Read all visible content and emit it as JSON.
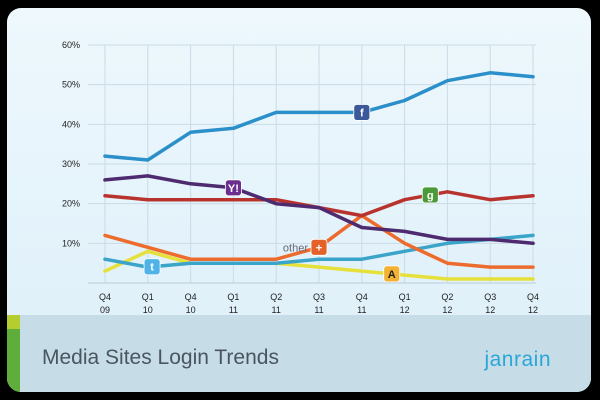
{
  "footer": {
    "title": "Media Sites Login Trends",
    "logo": "janrain"
  },
  "chart_data": {
    "type": "line",
    "title": "Media Sites Login Trends",
    "xlabel": "",
    "ylabel": "",
    "categories": [
      [
        "Q4",
        "09"
      ],
      [
        "Q1",
        "10"
      ],
      [
        "Q4",
        "10"
      ],
      [
        "Q1",
        "11"
      ],
      [
        "Q2",
        "11"
      ],
      [
        "Q3",
        "11"
      ],
      [
        "Q4",
        "11"
      ],
      [
        "Q1",
        "12"
      ],
      [
        "Q2",
        "12"
      ],
      [
        "Q3",
        "12"
      ],
      [
        "Q4",
        "12"
      ]
    ],
    "ylim": [
      0,
      60
    ],
    "yticks": [
      10,
      20,
      30,
      40,
      50,
      60
    ],
    "ytick_labels": [
      "10%",
      "20%",
      "30%",
      "40%",
      "50%",
      "60%"
    ],
    "grid": true,
    "series": [
      {
        "icon": "facebook-icon",
        "color": "#2b8fc9",
        "values": [
          32,
          31,
          38,
          39,
          43,
          43,
          43,
          46,
          51,
          53,
          52
        ],
        "icon_at": 6
      },
      {
        "icon": "yahoo-icon",
        "color": "#4e2a6e",
        "values": [
          26,
          27,
          25,
          24,
          20,
          19,
          14,
          13,
          11,
          11,
          10
        ],
        "icon_at": 3
      },
      {
        "icon": "google-icon",
        "color": "#b8332e",
        "values": [
          22,
          21,
          21,
          21,
          21,
          19,
          17,
          21,
          23,
          21,
          22
        ],
        "icon_at": 7.6
      },
      {
        "icon": "twitter-icon",
        "color": "#3aa4c9",
        "values": [
          6,
          4,
          5,
          5,
          5,
          6,
          6,
          8,
          10,
          11,
          12
        ],
        "icon_at": 1.1
      },
      {
        "icon": "aim-icon",
        "color": "#e6e03a",
        "values": [
          3,
          8,
          5,
          5,
          5,
          4,
          3,
          2,
          1,
          1,
          1
        ],
        "icon_at": 6.7
      },
      {
        "icon": "green-series",
        "color": "#3f9a35",
        "values": [
          null,
          null,
          5,
          5,
          5,
          null,
          null,
          null,
          null,
          null,
          null
        ]
      },
      {
        "icon": "other-icon",
        "label": "other",
        "color": "#ec6b2d",
        "values": [
          12,
          9,
          6,
          6,
          6,
          9,
          17,
          10,
          5,
          4,
          4
        ],
        "icon_at": 5
      }
    ]
  }
}
